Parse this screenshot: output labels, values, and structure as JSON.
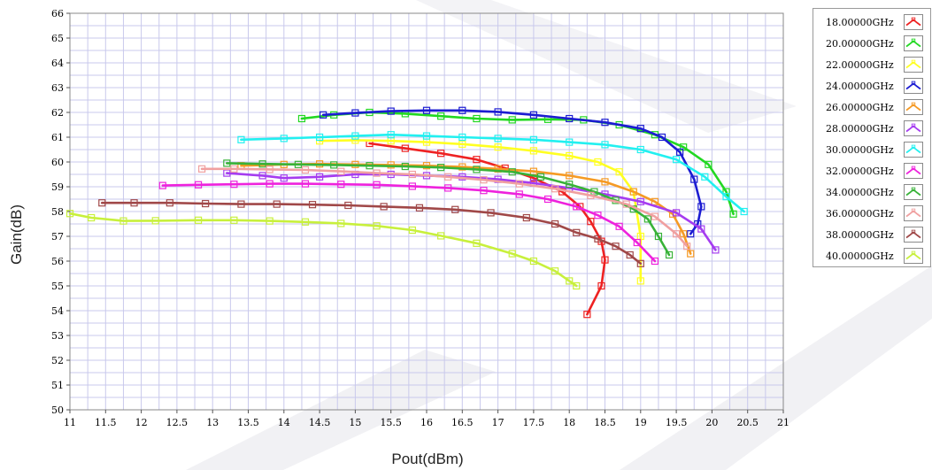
{
  "chart_data": {
    "type": "line",
    "xlabel": "Pout(dBm)",
    "ylabel": "Gain(dB)",
    "xlim": [
      11,
      21
    ],
    "ylim": [
      50,
      66
    ],
    "x_ticks": [
      "11",
      "11.5",
      "12",
      "12.5",
      "13",
      "13.5",
      "14",
      "14.5",
      "15",
      "15.5",
      "16",
      "16.5",
      "17",
      "17.5",
      "18",
      "18.5",
      "19",
      "19.5",
      "20",
      "20.5",
      "21"
    ],
    "y_ticks": [
      "50",
      "51",
      "52",
      "53",
      "54",
      "55",
      "56",
      "57",
      "58",
      "59",
      "60",
      "61",
      "62",
      "63",
      "64",
      "65",
      "66"
    ],
    "grid": true,
    "legend_position": "right",
    "marker": "square",
    "series": [
      {
        "name": "18.00000GHz",
        "color": "#ee2222",
        "x": [
          15.2,
          15.7,
          16.2,
          16.7,
          17.1,
          17.5,
          17.9,
          18.15,
          18.3,
          18.45,
          18.5,
          18.45,
          18.25
        ],
        "y": [
          60.75,
          60.55,
          60.35,
          60.1,
          59.75,
          59.35,
          58.8,
          58.2,
          57.6,
          56.8,
          56.05,
          55.0,
          53.85
        ]
      },
      {
        "name": "20.00000GHz",
        "color": "#22d822",
        "x": [
          14.25,
          14.7,
          15.2,
          15.7,
          16.2,
          16.7,
          17.2,
          17.7,
          18.2,
          18.7,
          19.2,
          19.6,
          19.95,
          20.2,
          20.3
        ],
        "y": [
          61.75,
          61.9,
          62.0,
          61.95,
          61.85,
          61.75,
          61.7,
          61.72,
          61.7,
          61.5,
          61.1,
          60.6,
          59.9,
          58.8,
          57.9
        ]
      },
      {
        "name": "22.00000GHz",
        "color": "#ffff22",
        "x": [
          14.5,
          15.0,
          15.5,
          16.0,
          16.5,
          17.0,
          17.5,
          18.0,
          18.4,
          18.7,
          18.9,
          19.0,
          19.0
        ],
        "y": [
          60.85,
          60.88,
          60.85,
          60.8,
          60.72,
          60.6,
          60.45,
          60.25,
          60.0,
          59.6,
          58.8,
          57.0,
          55.2
        ]
      },
      {
        "name": "24.00000GHz",
        "color": "#1c1cd2",
        "x": [
          14.55,
          15.0,
          15.5,
          16.0,
          16.5,
          17.0,
          17.5,
          18.0,
          18.5,
          19.0,
          19.3,
          19.55,
          19.75,
          19.85,
          19.8,
          19.7
        ],
        "y": [
          61.9,
          61.98,
          62.05,
          62.08,
          62.08,
          62.02,
          61.9,
          61.75,
          61.6,
          61.35,
          61.0,
          60.4,
          59.3,
          58.2,
          57.5,
          57.1
        ]
      },
      {
        "name": "26.00000GHz",
        "color": "#f59a24",
        "x": [
          13.4,
          14.0,
          14.5,
          15.0,
          15.5,
          16.0,
          16.5,
          17.0,
          17.5,
          18.0,
          18.5,
          18.9,
          19.2,
          19.45,
          19.6,
          19.7
        ],
        "y": [
          59.85,
          59.9,
          59.92,
          59.9,
          59.88,
          59.85,
          59.8,
          59.72,
          59.62,
          59.45,
          59.2,
          58.8,
          58.4,
          57.9,
          57.1,
          56.3
        ]
      },
      {
        "name": "28.00000GHz",
        "color": "#a53cf0",
        "x": [
          13.2,
          13.7,
          14.0,
          14.5,
          15.0,
          15.5,
          16.0,
          16.5,
          17.0,
          17.5,
          18.0,
          18.5,
          19.0,
          19.5,
          19.85,
          20.05
        ],
        "y": [
          59.55,
          59.45,
          59.35,
          59.4,
          59.5,
          59.5,
          59.45,
          59.4,
          59.3,
          59.15,
          58.95,
          58.7,
          58.4,
          57.95,
          57.3,
          56.45
        ]
      },
      {
        "name": "30.00000GHz",
        "color": "#22f0f0",
        "x": [
          13.4,
          14.0,
          14.5,
          15.0,
          15.5,
          16.0,
          16.5,
          17.0,
          17.5,
          18.0,
          18.5,
          19.0,
          19.5,
          19.9,
          20.2,
          20.45
        ],
        "y": [
          60.9,
          60.95,
          61.0,
          61.05,
          61.1,
          61.05,
          61.0,
          60.95,
          60.9,
          60.8,
          60.7,
          60.5,
          60.1,
          59.4,
          58.6,
          58.0
        ]
      },
      {
        "name": "32.00000GHz",
        "color": "#ee22dd",
        "x": [
          12.3,
          12.8,
          13.3,
          13.8,
          14.3,
          14.8,
          15.3,
          15.8,
          16.3,
          16.8,
          17.3,
          17.7,
          18.1,
          18.4,
          18.7,
          18.95,
          19.2
        ],
        "y": [
          59.05,
          59.08,
          59.1,
          59.12,
          59.12,
          59.1,
          59.08,
          59.02,
          58.95,
          58.85,
          58.7,
          58.5,
          58.2,
          57.85,
          57.4,
          56.75,
          56.0
        ]
      },
      {
        "name": "34.00000GHz",
        "color": "#38b238",
        "x": [
          13.2,
          13.7,
          14.2,
          14.7,
          15.2,
          15.7,
          16.2,
          16.7,
          17.2,
          17.6,
          18.0,
          18.35,
          18.65,
          18.9,
          19.1,
          19.25,
          19.4
        ],
        "y": [
          59.95,
          59.92,
          59.9,
          59.88,
          59.85,
          59.82,
          59.78,
          59.7,
          59.6,
          59.4,
          59.1,
          58.8,
          58.45,
          58.1,
          57.7,
          57.0,
          56.25
        ]
      },
      {
        "name": "36.00000GHz",
        "color": "#f0a0a0",
        "x": [
          12.85,
          13.3,
          13.8,
          14.3,
          14.8,
          15.3,
          15.8,
          16.3,
          16.8,
          17.3,
          17.8,
          18.3,
          18.8,
          19.2,
          19.5,
          19.65
        ],
        "y": [
          59.72,
          59.72,
          59.7,
          59.68,
          59.62,
          59.55,
          59.5,
          59.4,
          59.28,
          59.12,
          58.92,
          58.65,
          58.3,
          57.8,
          57.1,
          56.6
        ]
      },
      {
        "name": "38.00000GHz",
        "color": "#a04848",
        "x": [
          11.45,
          11.9,
          12.4,
          12.9,
          13.4,
          13.9,
          14.4,
          14.9,
          15.4,
          15.9,
          16.4,
          16.9,
          17.4,
          17.8,
          18.1,
          18.4,
          18.65,
          18.85,
          19.0
        ],
        "y": [
          58.35,
          58.35,
          58.35,
          58.32,
          58.3,
          58.3,
          58.28,
          58.25,
          58.2,
          58.15,
          58.08,
          57.95,
          57.75,
          57.5,
          57.15,
          56.9,
          56.6,
          56.25,
          55.9
        ]
      },
      {
        "name": "40.00000GHz",
        "color": "#c8f03c",
        "x": [
          11.0,
          11.3,
          11.75,
          12.2,
          12.8,
          13.3,
          13.8,
          14.3,
          14.8,
          15.3,
          15.8,
          16.2,
          16.7,
          17.2,
          17.5,
          17.8,
          18.0,
          18.1
        ],
        "y": [
          57.92,
          57.75,
          57.62,
          57.63,
          57.65,
          57.65,
          57.62,
          57.58,
          57.52,
          57.42,
          57.25,
          57.02,
          56.72,
          56.3,
          56.0,
          55.6,
          55.2,
          55.0
        ]
      }
    ]
  }
}
